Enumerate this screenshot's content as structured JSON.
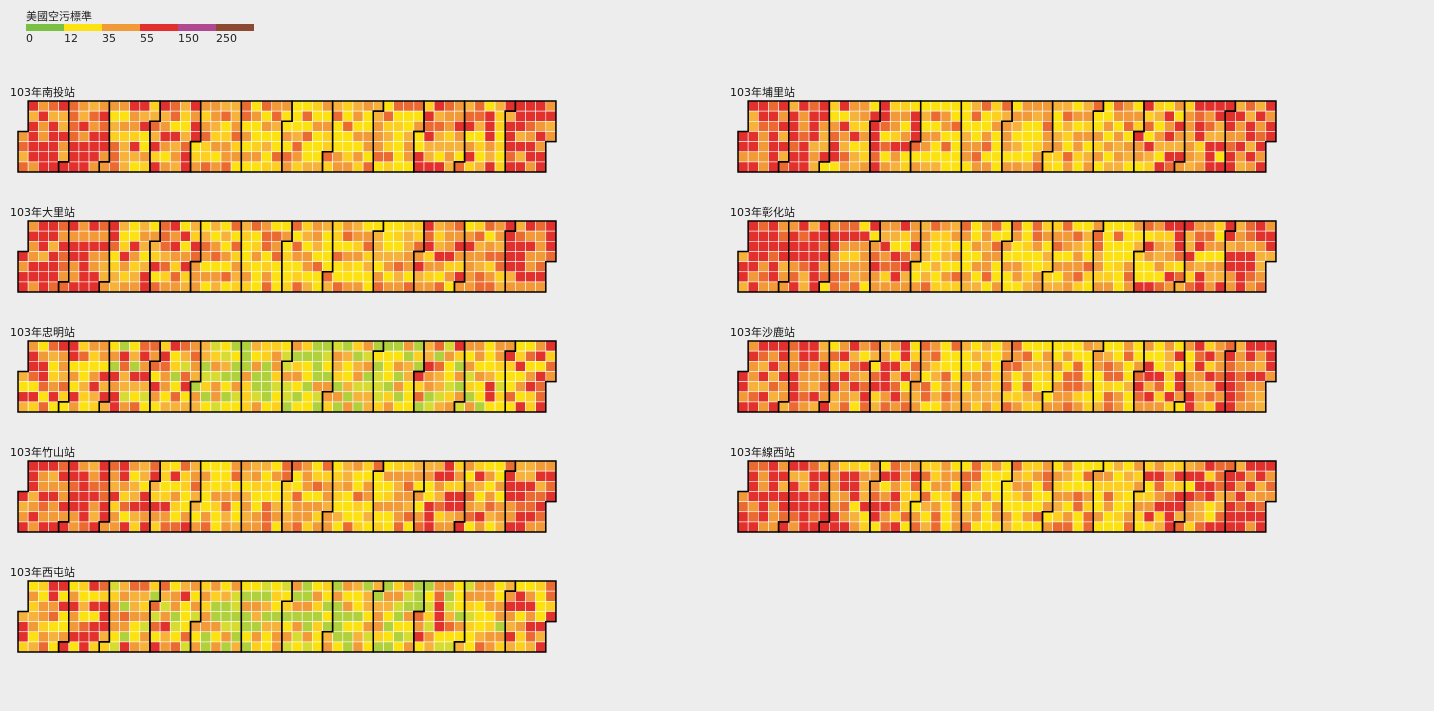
{
  "legend": {
    "title": "美國空污標準",
    "ticks": [
      "0",
      "12",
      "35",
      "55",
      "150",
      "250"
    ],
    "colors": [
      "#7ac143",
      "#fde212",
      "#f39a38",
      "#e2302d",
      "#b04990",
      "#8b4a32"
    ]
  },
  "chart_data": [
    {
      "type": "heatmap",
      "title": "103年南投站",
      "dominant": "#f39a38"
    },
    {
      "type": "heatmap",
      "title": "103年埔里站",
      "dominant": "#f39a38"
    },
    {
      "type": "heatmap",
      "title": "103年大里站",
      "dominant": "#f39a38"
    },
    {
      "type": "heatmap",
      "title": "103年彰化站",
      "dominant": "#f39a38"
    },
    {
      "type": "heatmap",
      "title": "103年忠明站",
      "dominant": "#fde212"
    },
    {
      "type": "heatmap",
      "title": "103年沙鹿站",
      "dominant": "#f39a38"
    },
    {
      "type": "heatmap",
      "title": "103年竹山站",
      "dominant": "#f39a38"
    },
    {
      "type": "heatmap",
      "title": "103年線西站",
      "dominant": "#f39a38"
    },
    {
      "type": "heatmap",
      "title": "103年西屯站",
      "dominant": "#fde212"
    }
  ]
}
